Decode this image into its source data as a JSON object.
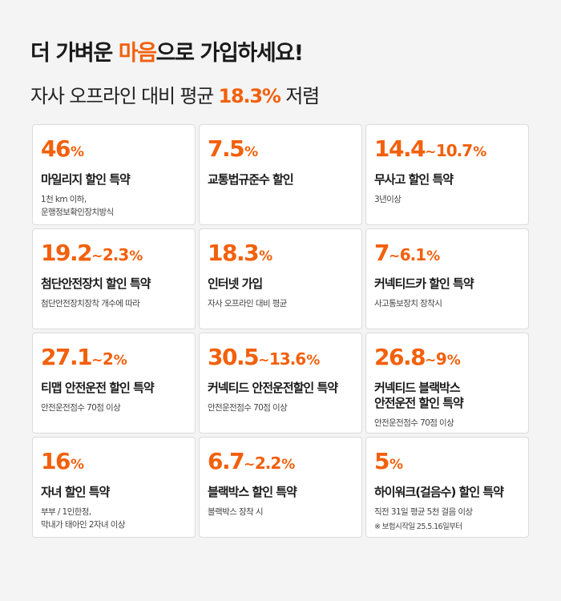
{
  "header": {
    "headline_part1": "더 가벼운 ",
    "headline_accent": "마음",
    "headline_part2": "으로 가입하세요!",
    "subline_part1": "자사 오프라인 대비 평균 ",
    "subline_accent": "18.3%",
    "subline_part2": " 저렴"
  },
  "cards": [
    {
      "rate_main": "46",
      "rate_sep": "",
      "rate_sub": "",
      "rate_unit": "%",
      "title_line1": "마일리지 할인 특약",
      "title_line2": "",
      "desc_line1": "1천 km 이하,",
      "desc_line2": "운행정보확인장치방식",
      "note": ""
    },
    {
      "rate_main": "7.5",
      "rate_sep": "",
      "rate_sub": "",
      "rate_unit": "%",
      "title_line1": "교통법규준수 할인",
      "title_line2": "",
      "desc_line1": "",
      "desc_line2": "",
      "note": ""
    },
    {
      "rate_main": "14.4",
      "rate_sep": "~",
      "rate_sub": "10.7",
      "rate_unit": "%",
      "title_line1": "무사고 할인 특약",
      "title_line2": "",
      "desc_line1": "3년이상",
      "desc_line2": "",
      "note": ""
    },
    {
      "rate_main": "19.2",
      "rate_sep": "~",
      "rate_sub": "2.3",
      "rate_unit": "%",
      "title_line1": "첨단안전장치 할인 특약",
      "title_line2": "",
      "desc_line1": "첨단안전장치장착 개수에 따라",
      "desc_line2": "",
      "note": ""
    },
    {
      "rate_main": "18.3",
      "rate_sep": "",
      "rate_sub": "",
      "rate_unit": "%",
      "title_line1": "인터넷 가입",
      "title_line2": "",
      "desc_line1": "자사 오프라인 대비 평균",
      "desc_line2": "",
      "note": ""
    },
    {
      "rate_main": "7",
      "rate_sep": "~",
      "rate_sub": "6.1",
      "rate_unit": "%",
      "title_line1": "커넥티드카 할인 특약",
      "title_line2": "",
      "desc_line1": "사고통보장치 장착시",
      "desc_line2": "",
      "note": ""
    },
    {
      "rate_main": "27.1",
      "rate_sep": "~",
      "rate_sub": "2",
      "rate_unit": "%",
      "title_line1": "티맵 안전운전 할인 특약",
      "title_line2": "",
      "desc_line1": "안전운전점수 70점 이상",
      "desc_line2": "",
      "note": ""
    },
    {
      "rate_main": "30.5",
      "rate_sep": "~",
      "rate_sub": "13.6",
      "rate_unit": "%",
      "title_line1": "커넥티드 안전운전할인 특약",
      "title_line2": "",
      "desc_line1": "안전운전점수 70점 이상",
      "desc_line2": "",
      "note": ""
    },
    {
      "rate_main": "26.8",
      "rate_sep": "~",
      "rate_sub": "9",
      "rate_unit": "%",
      "title_line1": "커넥티드 블랙박스",
      "title_line2": "안전운전 할인 특약",
      "desc_line1": "안전운전점수 70점 이상",
      "desc_line2": "",
      "note": ""
    },
    {
      "rate_main": "16",
      "rate_sep": "",
      "rate_sub": "",
      "rate_unit": "%",
      "title_line1": "자녀 할인 특약",
      "title_line2": "",
      "desc_line1": "부부 / 1인한정,",
      "desc_line2": "막내가 태아인 2자녀 이상",
      "note": ""
    },
    {
      "rate_main": "6.7",
      "rate_sep": "~",
      "rate_sub": "2.2",
      "rate_unit": "%",
      "title_line1": "블랙박스 할인 특약",
      "title_line2": "",
      "desc_line1": "블랙박스 장착 시",
      "desc_line2": "",
      "note": ""
    },
    {
      "rate_main": "5",
      "rate_sep": "",
      "rate_sub": "",
      "rate_unit": "%",
      "title_line1": "하이워크(걸음수) 할인 특약",
      "title_line2": "",
      "desc_line1": "직전 31일 평균 5천 걸음 이상",
      "desc_line2": "",
      "note": "※ 보험시작일 25.5.16일부터"
    }
  ],
  "colors": {
    "accent": "#f2600c",
    "background": "#f4f4f4",
    "card": "#ffffff"
  }
}
